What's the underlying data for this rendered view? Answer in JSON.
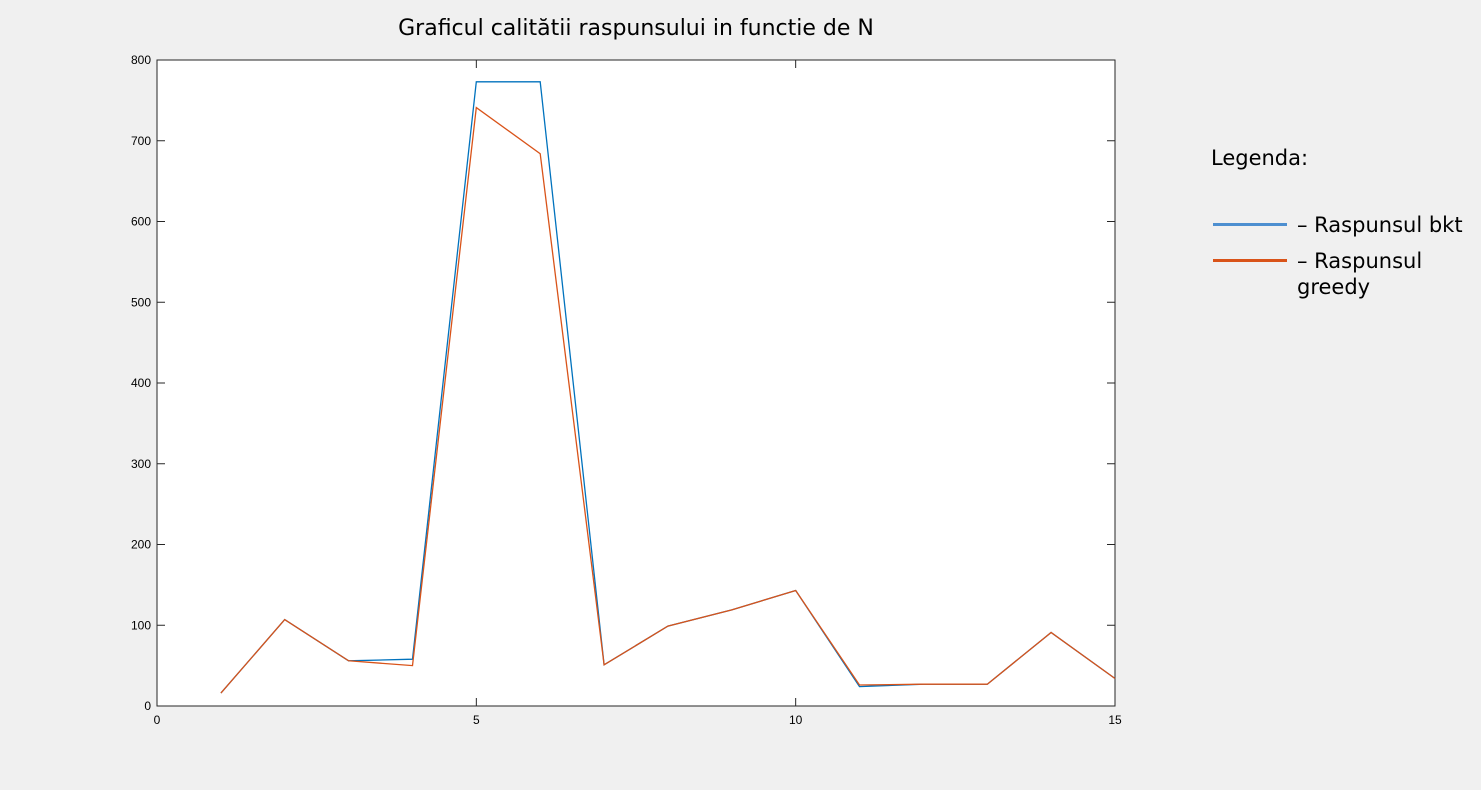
{
  "chart_data": {
    "type": "line",
    "title": "Graficul calitătii raspunsului in functie de N",
    "xlabel": "",
    "ylabel": "",
    "xlim": [
      0,
      15
    ],
    "ylim": [
      0,
      800
    ],
    "xticks": [
      0,
      5,
      10,
      15
    ],
    "yticks": [
      0,
      100,
      200,
      300,
      400,
      500,
      600,
      700,
      800
    ],
    "grid": false,
    "legend_title": "Legenda:",
    "legend_placement": "right-outside",
    "series": [
      {
        "name": "– Raspunsul bkt",
        "color": "#0072bd",
        "x": [
          1,
          2,
          3,
          4,
          5,
          6,
          7,
          8,
          9,
          10,
          11,
          12,
          13,
          14,
          15
        ],
        "y": [
          16,
          107,
          56,
          58,
          773,
          773,
          51,
          99,
          119,
          143,
          24,
          27,
          27,
          91,
          34
        ]
      },
      {
        "name": "– Raspunsul greedy",
        "color": "#d95319",
        "x": [
          1,
          2,
          3,
          4,
          5,
          6,
          7,
          8,
          9,
          10,
          11,
          12,
          13,
          14,
          15
        ],
        "y": [
          16,
          107,
          56,
          50,
          741,
          684,
          51,
          99,
          119,
          143,
          26,
          27,
          27,
          91,
          34
        ]
      }
    ]
  }
}
